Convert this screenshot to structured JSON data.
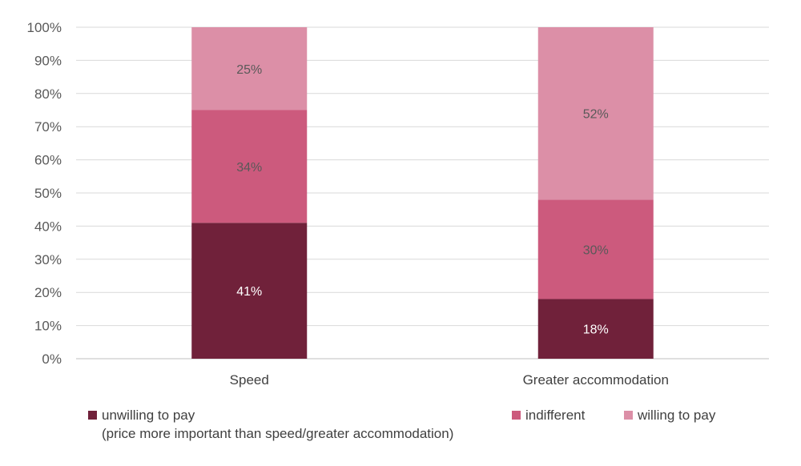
{
  "chart_data": {
    "type": "bar",
    "stacked": true,
    "categories": [
      "Speed",
      "Greater accommodation"
    ],
    "series": [
      {
        "name": "unwilling to pay",
        "values": [
          41,
          18
        ],
        "labels": [
          "41%",
          "18%"
        ],
        "color": "#70213a"
      },
      {
        "name": "indifferent",
        "values": [
          34,
          30
        ],
        "labels": [
          "34%",
          "30%"
        ],
        "color": "#cc5a7d"
      },
      {
        "name": "willing to pay",
        "values": [
          25,
          52
        ],
        "labels": [
          "25%",
          "52%"
        ],
        "color": "#dc8fa7"
      }
    ],
    "ylim": [
      0,
      100
    ],
    "yticks": [
      "0%",
      "10%",
      "20%",
      "30%",
      "40%",
      "50%",
      "60%",
      "70%",
      "80%",
      "90%",
      "100%"
    ],
    "grid": true,
    "legend_position": "bottom"
  },
  "legend": {
    "items": [
      {
        "label": "unwilling to pay",
        "sub": "(price more important than speed/greater accommodation)",
        "color": "#70213a"
      },
      {
        "label": "indifferent",
        "color": "#cc5a7d"
      },
      {
        "label": "willing to pay",
        "color": "#dc8fa7"
      }
    ]
  }
}
